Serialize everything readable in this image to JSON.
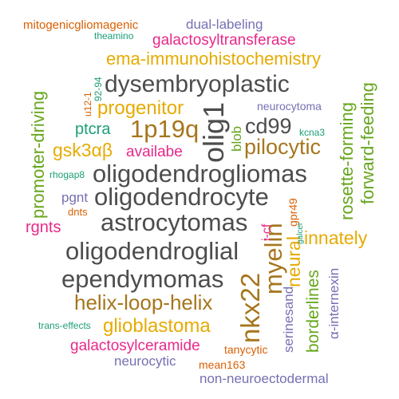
{
  "colors": {
    "gray": "#4d4d4d",
    "orange": "#d95f02",
    "teal": "#1b9e77",
    "purple": "#7570b3",
    "magenta": "#e7298a",
    "green": "#66a61e",
    "gold": "#e6ab02",
    "brown": "#a6761d"
  },
  "words": [
    "mitogenicgliomagenic",
    "dual-labeling",
    "theamino",
    "galactosyltransferase",
    "ema-immunohistochemistry",
    "dysembryoplastic",
    "progenitor",
    "neurocytoma",
    "1p19q",
    "ptcra",
    "cd99",
    "kcna3",
    "gsk3αβ",
    "availabe",
    "pilocytic",
    "rhogap8",
    "oligodendrogliomas",
    "oligodendrocyte",
    "pgnt",
    "dnts",
    "astrocytomas",
    "rgnts",
    "innately",
    "oligodendroglial",
    "ependymomas",
    "helix-loop-helix",
    "glioblastoma",
    "trans-effects",
    "galactosylceramide",
    "neurocytic",
    "tanycytic",
    "mean163",
    "non-neuroectodermal",
    "olig1",
    "u12-1",
    "92-94",
    "promoter-driving",
    "blob",
    "nkx22",
    "myelin",
    "i-cf",
    "neural",
    "gpr49",
    "serinesand",
    "borderlines",
    "rosette-forming",
    "forward-feeding",
    "galcer",
    "α-internexin"
  ]
}
